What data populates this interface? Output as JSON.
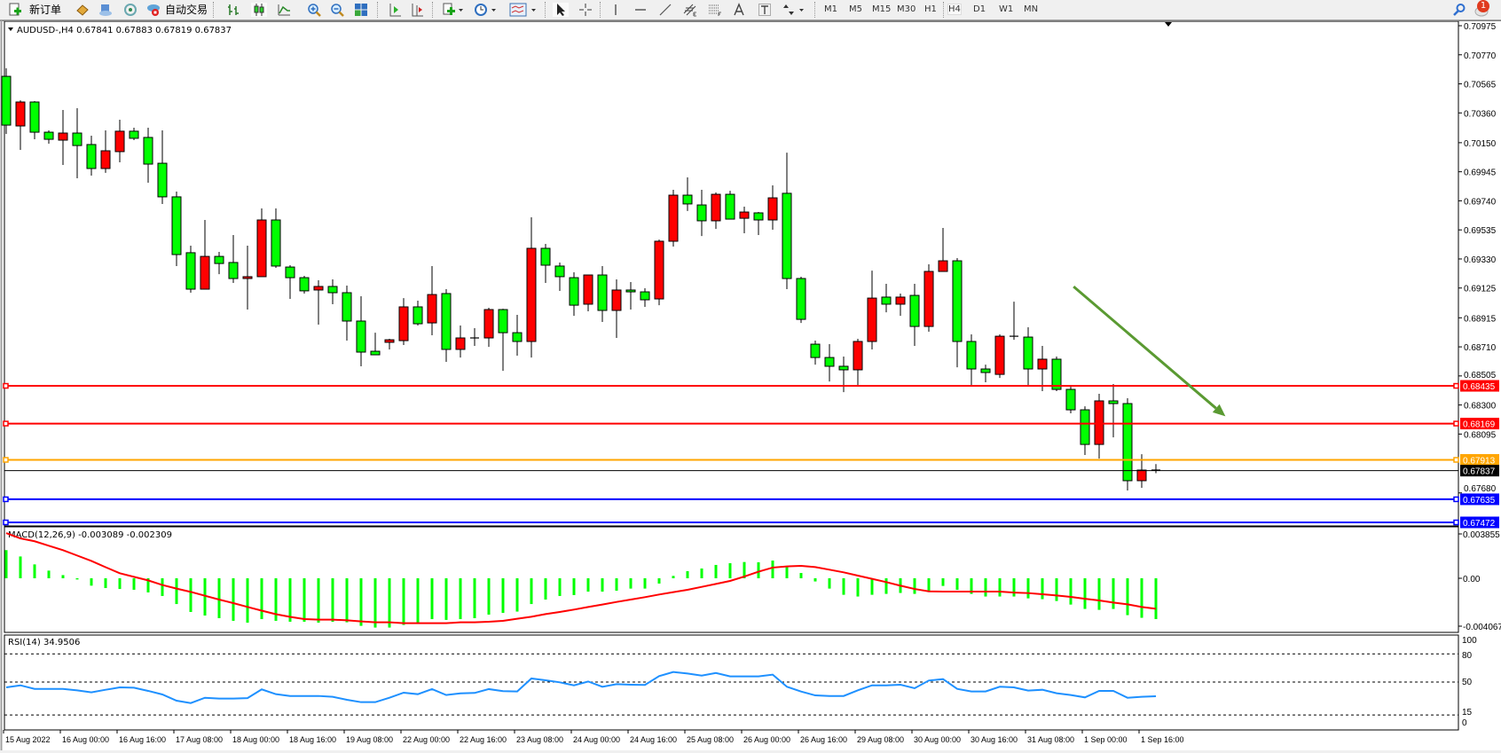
{
  "toolbar": {
    "new_order_label": "新订单",
    "auto_trading_label": "自动交易",
    "timeframes": [
      "M1",
      "M5",
      "M15",
      "M30",
      "H1",
      "H4",
      "D1",
      "W1",
      "MN"
    ],
    "active_timeframe": "H4",
    "notification_count": "1"
  },
  "chart": {
    "header": "AUDUSD-,H4  0.67841 0.67883 0.67819 0.67837",
    "symbol": "AUDUSD-",
    "timeframe": "H4",
    "ohlc_current": {
      "open": 0.67841,
      "high": 0.67883,
      "low": 0.67819,
      "close": 0.67837
    },
    "colors": {
      "bull_body": "#ff0000",
      "bear_body": "#00ff00",
      "outline": "#000000",
      "arrow": "#5a9a32"
    },
    "price_axis_labels": [
      "0.70975",
      "0.70770",
      "0.70565",
      "0.70360",
      "0.70150",
      "0.69945",
      "0.69740",
      "0.69535",
      "0.69330",
      "0.69125",
      "0.68915",
      "0.68710",
      "0.68505",
      "0.68300",
      "0.68095",
      "0.67680"
    ],
    "horizontal_lines": [
      {
        "price": 0.68435,
        "label": "0.68435",
        "color": "#ff0000"
      },
      {
        "price": 0.68169,
        "label": "0.68169",
        "color": "#ff0000"
      },
      {
        "price": 0.67913,
        "label": "0.67913",
        "color": "#ffa500"
      },
      {
        "price": 0.67837,
        "label": "0.67837",
        "color": "#000000"
      },
      {
        "price": 0.67635,
        "label": "0.67635",
        "color": "#0000ff"
      },
      {
        "price": 0.67472,
        "label": "0.67472",
        "color": "#0000ff"
      }
    ],
    "arrow": {
      "from": {
        "bar": 75.2,
        "price": 0.69135
      },
      "to": {
        "bar": 85.9,
        "price": 0.6822
      }
    },
    "x_labels": [
      "15 Aug 2022",
      "16 Aug 00:00",
      "16 Aug 16:00",
      "17 Aug 08:00",
      "18 Aug 00:00",
      "18 Aug 16:00",
      "19 Aug 08:00",
      "22 Aug 00:00",
      "22 Aug 16:00",
      "23 Aug 08:00",
      "24 Aug 00:00",
      "24 Aug 16:00",
      "25 Aug 08:00",
      "26 Aug 00:00",
      "26 Aug 16:00",
      "29 Aug 08:00",
      "30 Aug 00:00",
      "30 Aug 16:00",
      "31 Aug 08:00",
      "1 Sep 00:00",
      "1 Sep 16:00"
    ],
    "candles_ohlc": [
      [
        0.70618,
        0.70675,
        0.70212,
        0.70274
      ],
      [
        0.70268,
        0.70449,
        0.70099,
        0.70437
      ],
      [
        0.70437,
        0.70443,
        0.70174,
        0.70224
      ],
      [
        0.70224,
        0.70237,
        0.70143,
        0.70174
      ],
      [
        0.70168,
        0.70381,
        0.69993,
        0.70218
      ],
      [
        0.70218,
        0.70393,
        0.69899,
        0.7013
      ],
      [
        0.70137,
        0.70199,
        0.69918,
        0.69968
      ],
      [
        0.69968,
        0.70237,
        0.69937,
        0.70093
      ],
      [
        0.70087,
        0.70312,
        0.70012,
        0.70231
      ],
      [
        0.70231,
        0.70256,
        0.70168,
        0.70181
      ],
      [
        0.70187,
        0.70256,
        0.69868,
        0.69999
      ],
      [
        0.70005,
        0.70237,
        0.69718,
        0.69768
      ],
      [
        0.69768,
        0.69805,
        0.6928,
        0.69361
      ],
      [
        0.69374,
        0.69424,
        0.69092,
        0.69117
      ],
      [
        0.69117,
        0.69605,
        0.69117,
        0.69348
      ],
      [
        0.69348,
        0.6938,
        0.69223,
        0.69298
      ],
      [
        0.69305,
        0.69499,
        0.69161,
        0.69192
      ],
      [
        0.69192,
        0.69424,
        0.68973,
        0.69205
      ],
      [
        0.69205,
        0.69686,
        0.69205,
        0.69605
      ],
      [
        0.69605,
        0.69686,
        0.69267,
        0.6928
      ],
      [
        0.69273,
        0.69286,
        0.69048,
        0.69198
      ],
      [
        0.69198,
        0.69211,
        0.69086,
        0.69105
      ],
      [
        0.69111,
        0.6918,
        0.68867,
        0.69136
      ],
      [
        0.69136,
        0.69186,
        0.69011,
        0.69092
      ],
      [
        0.69092,
        0.69142,
        0.68754,
        0.68892
      ],
      [
        0.68892,
        0.69067,
        0.68573,
        0.68673
      ],
      [
        0.68679,
        0.6881,
        0.68654,
        0.68654
      ],
      [
        0.68742,
        0.68767,
        0.68692,
        0.6876
      ],
      [
        0.68754,
        0.69054,
        0.68723,
        0.68992
      ],
      [
        0.68992,
        0.69036,
        0.68861,
        0.68873
      ],
      [
        0.68879,
        0.6928,
        0.68792,
        0.69079
      ],
      [
        0.69086,
        0.69117,
        0.68604,
        0.68692
      ],
      [
        0.68692,
        0.68861,
        0.68635,
        0.68773
      ],
      [
        0.68773,
        0.68842,
        0.68717,
        0.68773
      ],
      [
        0.68773,
        0.68986,
        0.6871,
        0.68973
      ],
      [
        0.68973,
        0.68979,
        0.68541,
        0.6881
      ],
      [
        0.6881,
        0.68936,
        0.68648,
        0.68748
      ],
      [
        0.68748,
        0.69624,
        0.68635,
        0.69405
      ],
      [
        0.69405,
        0.69436,
        0.69161,
        0.69286
      ],
      [
        0.6928,
        0.69305,
        0.69105,
        0.69205
      ],
      [
        0.69198,
        0.69236,
        0.68929,
        0.69004
      ],
      [
        0.69011,
        0.69217,
        0.68961,
        0.69217
      ],
      [
        0.69217,
        0.6928,
        0.68886,
        0.68967
      ],
      [
        0.68967,
        0.69186,
        0.68773,
        0.69111
      ],
      [
        0.69111,
        0.69167,
        0.68973,
        0.69098
      ],
      [
        0.69098,
        0.69123,
        0.68992,
        0.69042
      ],
      [
        0.69048,
        0.69467,
        0.69004,
        0.69455
      ],
      [
        0.69455,
        0.69818,
        0.69417,
        0.6978
      ],
      [
        0.6978,
        0.69905,
        0.69668,
        0.69718
      ],
      [
        0.69711,
        0.69818,
        0.69492,
        0.69599
      ],
      [
        0.69599,
        0.69799,
        0.69542,
        0.69786
      ],
      [
        0.69786,
        0.69811,
        0.69611,
        0.69611
      ],
      [
        0.69617,
        0.69699,
        0.69511,
        0.69661
      ],
      [
        0.69655,
        0.69661,
        0.69499,
        0.69605
      ],
      [
        0.69605,
        0.69849,
        0.69536,
        0.69761
      ],
      [
        0.69793,
        0.7008,
        0.69117,
        0.69192
      ],
      [
        0.69192,
        0.69205,
        0.68879,
        0.68904
      ],
      [
        0.68729,
        0.68754,
        0.68585,
        0.68635
      ],
      [
        0.68635,
        0.68729,
        0.68466,
        0.68573
      ],
      [
        0.68573,
        0.68642,
        0.68391,
        0.68548
      ],
      [
        0.68548,
        0.68767,
        0.68435,
        0.68748
      ],
      [
        0.68748,
        0.69248,
        0.68692,
        0.69054
      ],
      [
        0.69061,
        0.69155,
        0.68954,
        0.69011
      ],
      [
        0.69011,
        0.69086,
        0.68929,
        0.69061
      ],
      [
        0.69073,
        0.69155,
        0.68717,
        0.68854
      ],
      [
        0.68854,
        0.69292,
        0.68817,
        0.69242
      ],
      [
        0.69242,
        0.69549,
        0.69242,
        0.69317
      ],
      [
        0.69317,
        0.69336,
        0.68566,
        0.68748
      ],
      [
        0.68748,
        0.68798,
        0.68441,
        0.68554
      ],
      [
        0.68554,
        0.68585,
        0.6846,
        0.68529
      ],
      [
        0.68516,
        0.68798,
        0.68491,
        0.68785
      ],
      [
        0.68785,
        0.69029,
        0.6876,
        0.68779
      ],
      [
        0.68779,
        0.68848,
        0.68441,
        0.68554
      ],
      [
        0.68554,
        0.68717,
        0.68398,
        0.68623
      ],
      [
        0.68623,
        0.68642,
        0.68398,
        0.6841
      ],
      [
        0.6841,
        0.68429,
        0.68241,
        0.68266
      ],
      [
        0.68266,
        0.68291,
        0.67947,
        0.68022
      ],
      [
        0.68022,
        0.68379,
        0.67922,
        0.68329
      ],
      [
        0.68329,
        0.68448,
        0.68072,
        0.6831
      ],
      [
        0.6831,
        0.68348,
        0.67697,
        0.67766
      ],
      [
        0.67766,
        0.67953,
        0.67716,
        0.67841
      ],
      [
        0.67841,
        0.67883,
        0.67819,
        0.67837
      ]
    ]
  },
  "macd": {
    "label": "MACD(12,26,9) -0.003089 -0.002309",
    "axis_labels": [
      "0.003855",
      "0.00",
      "-0.004067"
    ],
    "range": [
      -0.004067,
      0.003855
    ],
    "colors": {
      "histogram": "#00ff00",
      "signal": "#ff0000"
    },
    "main": [
      0.00213,
      0.00165,
      0.00105,
      0.00058,
      0.00024,
      -9e-05,
      -0.00056,
      -0.00074,
      -0.00081,
      -0.00087,
      -0.00107,
      -0.00134,
      -0.00195,
      -0.00255,
      -0.00282,
      -0.00302,
      -0.00322,
      -0.00336,
      -0.00309,
      -0.00322,
      -0.00329,
      -0.00329,
      -0.00336,
      -0.00329,
      -0.00333,
      -0.0036,
      -0.00373,
      -0.00373,
      -0.00353,
      -0.00336,
      -0.00309,
      -0.00315,
      -0.00309,
      -0.00302,
      -0.00275,
      -0.00262,
      -0.00252,
      -0.00195,
      -0.00161,
      -0.00134,
      -0.00127,
      -0.00101,
      -0.00101,
      -0.00094,
      -0.00078,
      -0.00078,
      -0.0004,
      0.00018,
      0.00054,
      0.00074,
      0.00101,
      0.00114,
      0.00123,
      0.00121,
      0.00134,
      0.00085,
      0.0004,
      -0.00024,
      -0.00078,
      -0.00125,
      -0.00138,
      -0.00125,
      -0.00118,
      -0.00111,
      -0.00118,
      -0.00094,
      -0.00058,
      -0.00087,
      -0.00118,
      -0.00138,
      -0.00138,
      -0.00138,
      -0.00152,
      -0.00158,
      -0.00172,
      -0.00199,
      -0.00232,
      -0.00239,
      -0.00232,
      -0.00279,
      -0.00299,
      -0.003089
    ],
    "signal": [
      0.00342,
      0.00302,
      0.0028,
      0.00246,
      0.00213,
      0.00172,
      0.00131,
      0.00084,
      0.00038,
      0.00011,
      -0.00016,
      -0.00051,
      -0.00078,
      -0.00103,
      -0.00132,
      -0.00161,
      -0.00188,
      -0.00217,
      -0.00245,
      -0.00272,
      -0.00292,
      -0.00309,
      -0.00313,
      -0.00313,
      -0.00318,
      -0.00326,
      -0.00333,
      -0.00333,
      -0.0034,
      -0.0034,
      -0.0034,
      -0.0034,
      -0.00333,
      -0.00333,
      -0.00329,
      -0.00322,
      -0.00306,
      -0.00291,
      -0.00271,
      -0.00255,
      -0.00237,
      -0.00217,
      -0.00199,
      -0.00179,
      -0.00161,
      -0.00143,
      -0.00123,
      -0.00105,
      -0.00087,
      -0.00065,
      -0.00043,
      -0.0002,
      0.00013,
      0.0005,
      0.00081,
      0.0009,
      0.00094,
      0.00085,
      0.00065,
      0.00045,
      0.0002,
      -4e-05,
      -0.00029,
      -0.00056,
      -0.00081,
      -0.00099,
      -0.00101,
      -0.00101,
      -0.00101,
      -0.00101,
      -0.00101,
      -0.00108,
      -0.00112,
      -0.00121,
      -0.0013,
      -0.00141,
      -0.00155,
      -0.00168,
      -0.00184,
      -0.00197,
      -0.00217,
      -0.002309
    ]
  },
  "rsi": {
    "label": "RSI(14) 34.9506",
    "axis_labels": [
      "100",
      "80",
      "50",
      "15",
      "0"
    ],
    "levels": [
      80,
      50,
      15
    ],
    "color": "#1e90ff",
    "values": [
      44.3,
      46.5,
      42.7,
      42.7,
      42.7,
      41.2,
      39,
      41.8,
      44.3,
      44,
      40.6,
      36.8,
      30.2,
      27.6,
      33.3,
      32.4,
      32.4,
      32.9,
      42.2,
      37.1,
      35.2,
      35.2,
      35.2,
      34.3,
      31.1,
      28.6,
      28.6,
      33.3,
      38.7,
      37.1,
      42.5,
      36.2,
      38,
      38.4,
      42.5,
      40.3,
      40,
      53.8,
      51.9,
      49.7,
      46.5,
      50.6,
      45,
      47.8,
      47.2,
      46.9,
      56.3,
      60.7,
      59.1,
      56.9,
      59.7,
      56,
      56,
      56,
      57.9,
      45,
      39.9,
      35.8,
      35.2,
      35.2,
      41.2,
      46.5,
      46.5,
      47.2,
      43.4,
      51.6,
      53.1,
      42.7,
      40,
      40,
      45,
      44.3,
      40.9,
      41.8,
      38.1,
      36.2,
      33.7,
      40.6,
      40.6,
      33.3,
      34.3,
      34.9506
    ]
  }
}
